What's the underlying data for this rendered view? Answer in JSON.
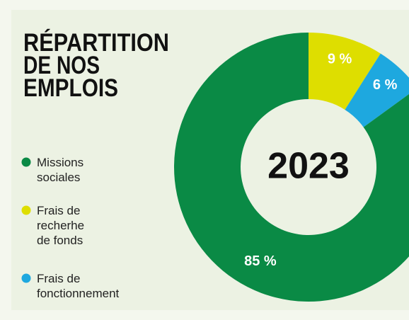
{
  "chart_data": {
    "type": "donut",
    "title": [
      "RÉPARTITION",
      "DE NOS",
      "EMPLOIS"
    ],
    "center_label": "2023",
    "categories": [
      [
        "Missions",
        "sociales"
      ],
      [
        "Frais de",
        "recherhe",
        "de fonds"
      ],
      [
        "Frais de",
        "fonctionnement"
      ]
    ],
    "values": [
      85,
      9,
      6
    ],
    "value_labels": [
      "85 %",
      "9 %",
      "6 %"
    ],
    "colors": [
      "#0a8a45",
      "#dede00",
      "#1ea8df"
    ]
  }
}
